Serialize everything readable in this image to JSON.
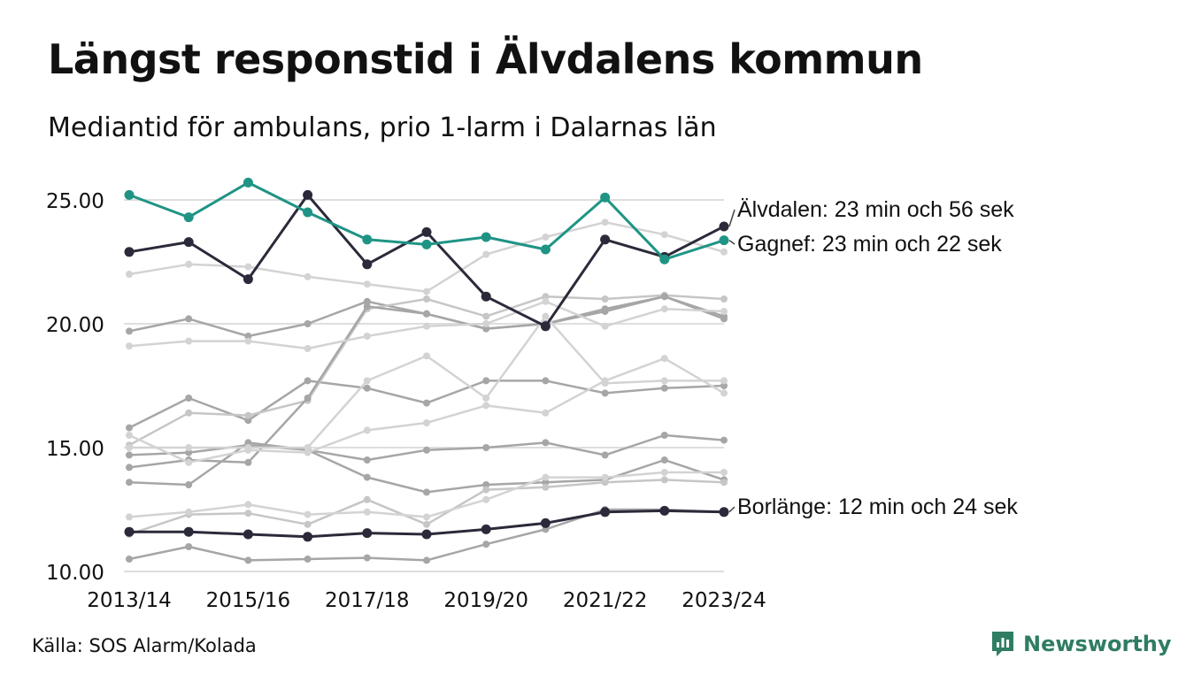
{
  "header": {
    "title": "Längst responstid i Älvdalens kommun",
    "subtitle": "Mediantid för ambulans, prio 1-larm i Dalarnas län"
  },
  "footer": {
    "source": "Källa: SOS Alarm/Kolada",
    "brand": "Newsworthy",
    "brand_icon": "newsworthy-logo-icon"
  },
  "colors": {
    "highlight_teal": "#1f9485",
    "highlight_dark": "#2b2a3a",
    "background_series": [
      "#a6a6a6",
      "#c6c6c6",
      "#d3d3d3"
    ],
    "grid": "#dedede"
  },
  "chart_data": {
    "type": "line",
    "x": [
      "2013/14",
      "2014/15",
      "2015/16",
      "2016/17",
      "2017/18",
      "2018/19",
      "2019/20",
      "2020/21",
      "2021/22",
      "2022/23",
      "2023/24"
    ],
    "x_tick_labels": [
      "2013/14",
      "2015/16",
      "2017/18",
      "2019/20",
      "2021/22",
      "2023/24"
    ],
    "ylim": [
      10,
      25.5
    ],
    "y_ticks": [
      10,
      15,
      20,
      25
    ],
    "y_tick_labels": [
      "10.00",
      "15.00",
      "20.00",
      "25.00"
    ],
    "grid": "horizontal",
    "series": [
      {
        "name": "Älvdalen",
        "highlight": true,
        "color": "#2b2a3a",
        "label": "Älvdalen: 23 min och 56 sek",
        "values": [
          22.9,
          23.3,
          21.8,
          25.2,
          22.4,
          23.7,
          21.1,
          19.9,
          23.4,
          22.7,
          23.93
        ]
      },
      {
        "name": "Gagnef",
        "highlight": true,
        "color": "#1f9485",
        "label": "Gagnef: 23 min och 22 sek",
        "values": [
          25.2,
          24.3,
          25.7,
          24.5,
          23.4,
          23.2,
          23.5,
          23.0,
          25.1,
          22.6,
          23.37
        ]
      },
      {
        "name": "Borlänge",
        "highlight": true,
        "color": "#2b2a3a",
        "label": "Borlänge: 12 min och 24 sek",
        "values": [
          11.6,
          11.6,
          11.5,
          11.4,
          11.55,
          11.5,
          11.7,
          11.95,
          12.4,
          12.45,
          12.4
        ]
      },
      {
        "color": "#d3d3d3",
        "values": [
          22.0,
          22.4,
          22.3,
          21.9,
          21.6,
          21.3,
          22.8,
          23.5,
          24.1,
          23.6,
          22.9
        ]
      },
      {
        "color": "#a6a6a6",
        "values": [
          19.7,
          20.2,
          19.5,
          20.0,
          20.9,
          20.4,
          19.8,
          20.0,
          20.5,
          21.1,
          20.2
        ]
      },
      {
        "color": "#a6a6a6",
        "values": [
          15.8,
          17.0,
          16.1,
          17.7,
          17.4,
          16.8,
          17.7,
          17.7,
          17.2,
          17.4,
          17.5
        ]
      },
      {
        "color": "#c6c6c6",
        "values": [
          15.1,
          16.4,
          16.3,
          16.9,
          20.6,
          21.0,
          20.3,
          21.1,
          21.0,
          21.15,
          21.0
        ]
      },
      {
        "color": "#a6a6a6",
        "values": [
          14.2,
          14.5,
          14.4,
          17.0,
          20.7,
          20.4,
          19.8,
          20.0,
          20.6,
          21.1,
          20.3
        ]
      },
      {
        "color": "#a6a6a6",
        "values": [
          13.6,
          13.5,
          15.2,
          14.9,
          13.8,
          13.2,
          13.5,
          13.6,
          13.7,
          14.5,
          13.7
        ]
      },
      {
        "color": "#a6a6a6",
        "values": [
          14.7,
          14.8,
          15.1,
          14.9,
          14.5,
          14.9,
          15.0,
          15.2,
          14.7,
          15.5,
          15.3
        ]
      },
      {
        "color": "#d3d3d3",
        "values": [
          15.5,
          14.4,
          14.9,
          14.8,
          15.7,
          16.0,
          16.7,
          16.4,
          17.7,
          18.6,
          17.2
        ]
      },
      {
        "color": "#d3d3d3",
        "values": [
          19.1,
          19.3,
          19.3,
          19.0,
          19.5,
          19.9,
          20.0,
          20.9,
          19.9,
          20.6,
          20.5
        ]
      },
      {
        "color": "#d3d3d3",
        "values": [
          15.0,
          15.0,
          15.0,
          15.0,
          17.7,
          18.7,
          17.0,
          20.3,
          17.6,
          17.7,
          17.7
        ]
      },
      {
        "color": "#c6c6c6",
        "values": [
          11.5,
          12.3,
          12.35,
          11.9,
          12.9,
          11.9,
          13.3,
          13.4,
          13.6,
          13.7,
          13.6
        ]
      },
      {
        "color": "#d3d3d3",
        "values": [
          12.2,
          12.4,
          12.7,
          12.3,
          12.4,
          12.2,
          12.9,
          13.8,
          13.8,
          14.0,
          14.0
        ]
      },
      {
        "color": "#a6a6a6",
        "values": [
          10.5,
          11.0,
          10.45,
          10.5,
          10.55,
          10.45,
          11.1,
          11.7,
          12.5,
          12.5,
          12.4
        ]
      }
    ]
  }
}
